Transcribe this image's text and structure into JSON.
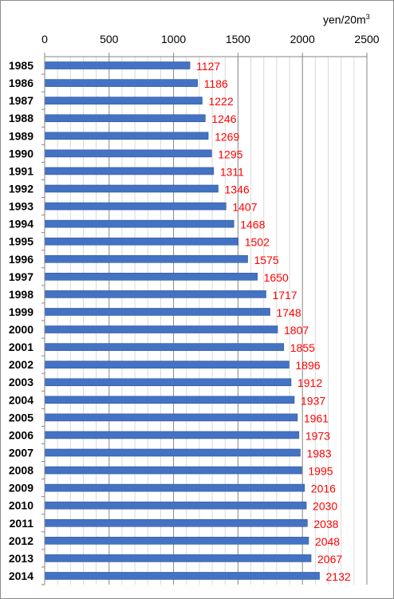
{
  "chart_data": {
    "type": "bar",
    "orientation": "horizontal",
    "unit_label": "yen/20m",
    "unit_superscript": "3",
    "categories": [
      "1985",
      "1986",
      "1987",
      "1988",
      "1989",
      "1990",
      "1991",
      "1992",
      "1993",
      "1994",
      "1995",
      "1996",
      "1997",
      "1998",
      "1999",
      "2000",
      "2001",
      "2002",
      "2003",
      "2004",
      "2005",
      "2006",
      "2007",
      "2008",
      "2009",
      "2010",
      "2011",
      "2012",
      "2013",
      "2014"
    ],
    "values": [
      1127,
      1186,
      1222,
      1246,
      1269,
      1295,
      1311,
      1346,
      1407,
      1468,
      1502,
      1575,
      1650,
      1717,
      1748,
      1807,
      1855,
      1896,
      1912,
      1937,
      1961,
      1973,
      1983,
      1995,
      2016,
      2030,
      2038,
      2048,
      2067,
      2132
    ],
    "data_labels": [
      "1127",
      "1186",
      "1222",
      "1246",
      "1269",
      "1295",
      "1311",
      "1346",
      "1407",
      "1468",
      "1502",
      "1575",
      "1650",
      "1717",
      "1748",
      "1807",
      "1855",
      "1896",
      "1912",
      "1937",
      "1961",
      "1973",
      "1983",
      "1995",
      "2016",
      "2030",
      "2038",
      "2048",
      "2067",
      "2132"
    ],
    "xlim": [
      0,
      2500
    ],
    "ticks": [
      0,
      500,
      1000,
      1500,
      2000,
      2500
    ],
    "tick_labels": [
      "0",
      "500",
      "1000",
      "1500",
      "2000",
      "2500"
    ],
    "minor_step": 100,
    "axis_position": "top",
    "grid": true,
    "legend": "none",
    "colors": {
      "bar": "#4472c4",
      "bar_edge": "#2f5597",
      "data_label": "#ff0000",
      "major_grid": "#868686",
      "minor_grid": "#d9d9d9",
      "text": "#000000"
    }
  }
}
